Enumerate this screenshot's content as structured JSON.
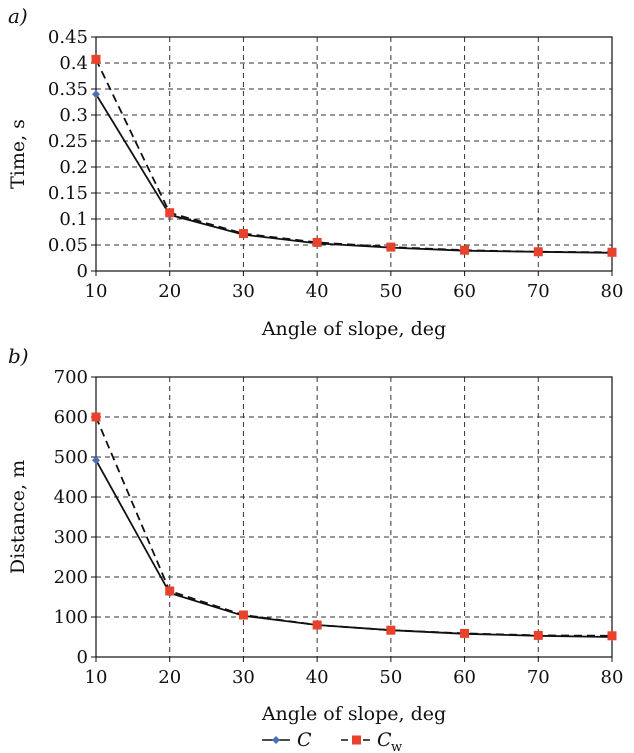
{
  "chart_data": [
    {
      "type": "line",
      "panel_label": "a)",
      "title": "",
      "xlabel": "Angle of slope, deg",
      "ylabel": "Time, s",
      "xlim": [
        10,
        80
      ],
      "ylim": [
        0,
        0.45
      ],
      "x": [
        10,
        20,
        30,
        40,
        50,
        60,
        70,
        80
      ],
      "x_ticks": [
        "10",
        "20",
        "30",
        "40",
        "50",
        "60",
        "70",
        "80"
      ],
      "y_ticks": [
        "0",
        "0.05",
        "0.1",
        "0.15",
        "0.2",
        "0.25",
        "0.3",
        "0.35",
        "0.4",
        "0.45"
      ],
      "y_tick_values": [
        0,
        0.05,
        0.1,
        0.15,
        0.2,
        0.25,
        0.3,
        0.35,
        0.4,
        0.45
      ],
      "grid": true,
      "series": [
        {
          "name": "C",
          "values": [
            0.34,
            0.108,
            0.07,
            0.053,
            0.045,
            0.039,
            0.037,
            0.035
          ]
        },
        {
          "name": "C_w",
          "values": [
            0.407,
            0.112,
            0.072,
            0.055,
            0.046,
            0.04,
            0.037,
            0.036
          ]
        }
      ]
    },
    {
      "type": "line",
      "panel_label": "b)",
      "title": "",
      "xlabel": "Angle of slope, deg",
      "ylabel": "Distance, m",
      "xlim": [
        10,
        80
      ],
      "ylim": [
        0,
        700
      ],
      "x": [
        10,
        20,
        30,
        40,
        50,
        60,
        70,
        80
      ],
      "x_ticks": [
        "10",
        "20",
        "30",
        "40",
        "50",
        "60",
        "70",
        "80"
      ],
      "y_ticks": [
        "0",
        "100",
        "200",
        "300",
        "400",
        "500",
        "600",
        "700"
      ],
      "y_tick_values": [
        0,
        100,
        200,
        300,
        400,
        500,
        600,
        700
      ],
      "grid": true,
      "series": [
        {
          "name": "C",
          "values": [
            492,
            160,
            103,
            80,
            67,
            58,
            53,
            50
          ]
        },
        {
          "name": "C_w",
          "values": [
            600,
            165,
            105,
            80,
            67,
            59,
            54,
            53
          ]
        }
      ]
    }
  ],
  "legend": {
    "placement": "bottom-center",
    "items": [
      {
        "label": "C",
        "subscript": "",
        "marker": "diamond",
        "color": "#4a6fb5",
        "line": "solid"
      },
      {
        "label": "C",
        "subscript": "w",
        "marker": "square",
        "color": "#e8412c",
        "line": "dashed"
      }
    ]
  },
  "colors": {
    "series_c_marker": "#4a6fb5",
    "series_cw_marker": "#e8412c",
    "line": "#111111",
    "grid": "#333333"
  }
}
